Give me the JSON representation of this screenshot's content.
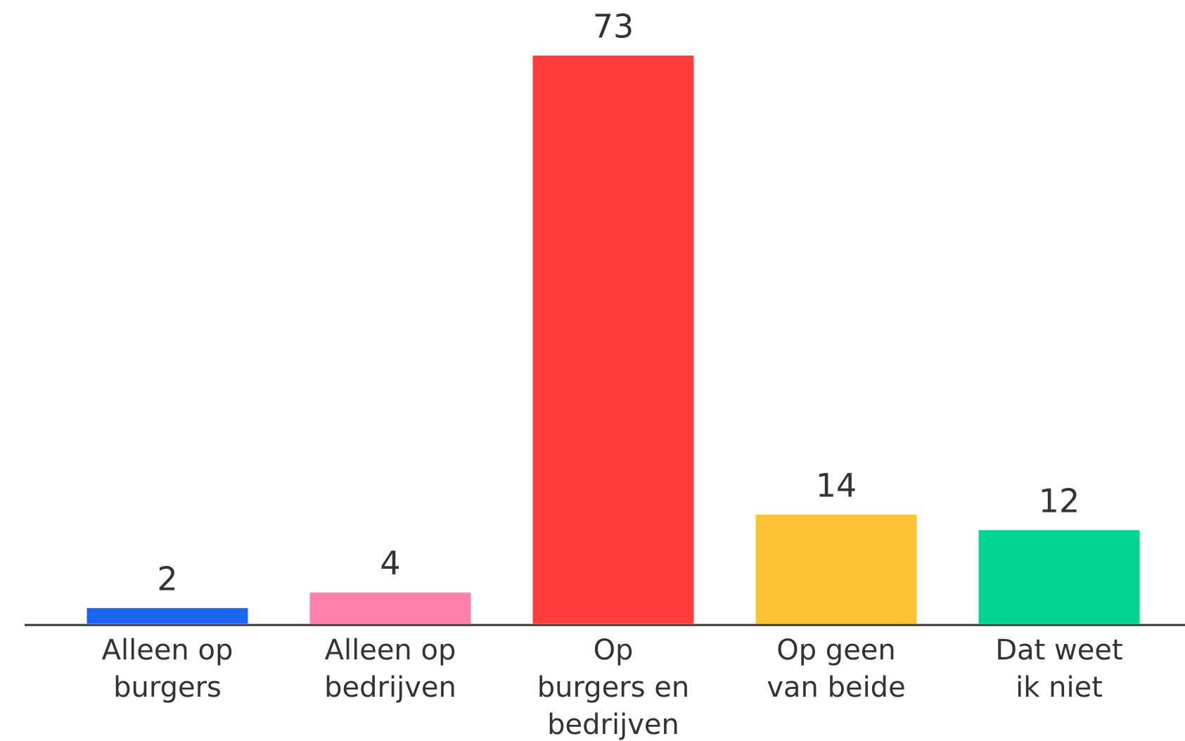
{
  "chart_data": {
    "type": "bar",
    "categories": [
      [
        "Alleen op",
        "burgers"
      ],
      [
        "Alleen op",
        "bedrijven"
      ],
      [
        "Op",
        "burgers en",
        "bedrijven"
      ],
      [
        "Op geen",
        "van beide"
      ],
      [
        "Dat weet",
        "ik niet"
      ]
    ],
    "values": [
      2,
      4,
      73,
      14,
      12
    ],
    "colors": [
      "#1c64f2",
      "#ff80aa",
      "#ff3d3d",
      "#ffc435",
      "#00d68f"
    ]
  }
}
